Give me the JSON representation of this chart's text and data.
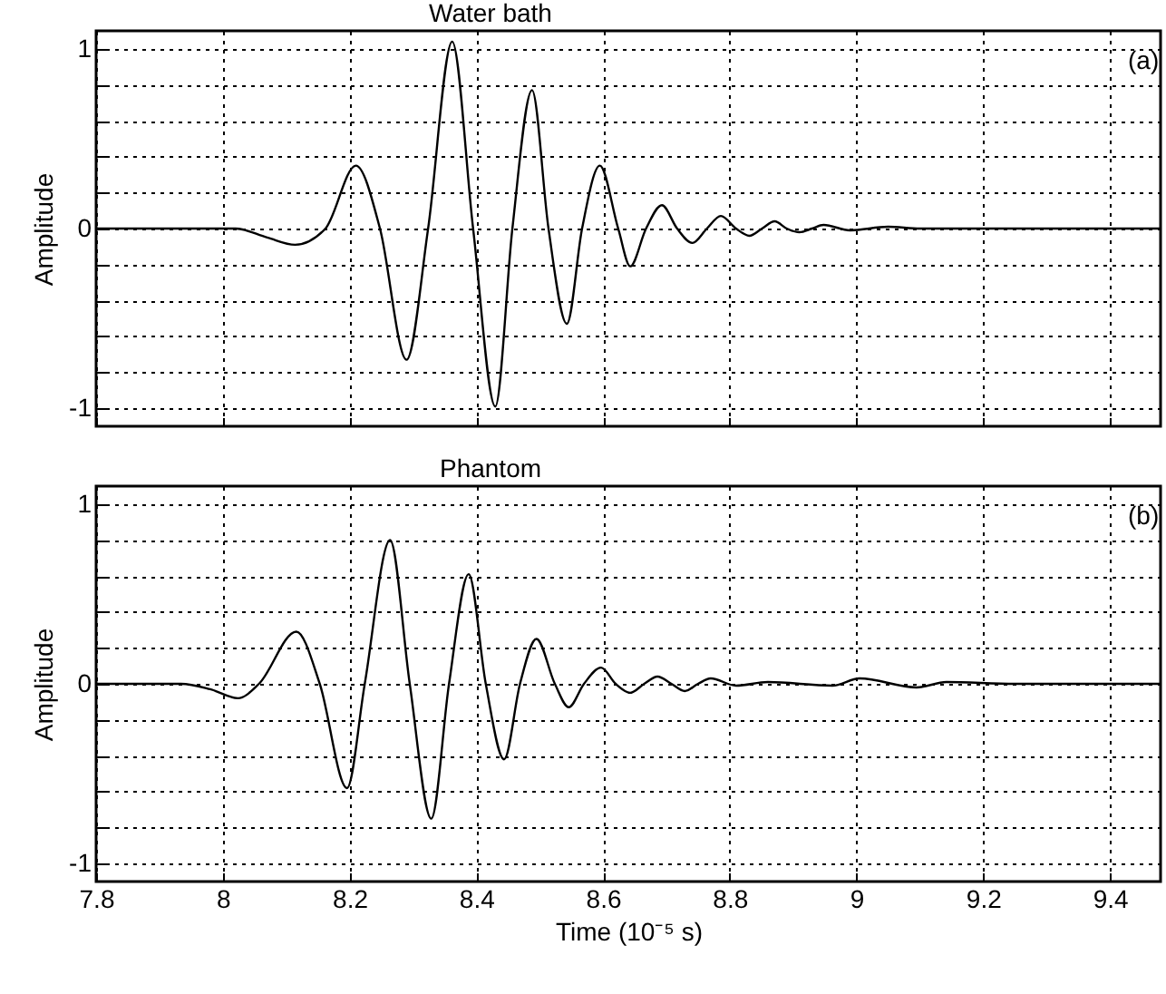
{
  "chart_data": [
    {
      "type": "line",
      "title": "Water bath",
      "ylabel": "Amplitude",
      "annotations": [
        "(a)"
      ],
      "tick_labels": "y",
      "grid": true,
      "line_style": "solid",
      "xlim": [
        7.8,
        9.48
      ],
      "xticks": [
        7.8,
        8,
        8.2,
        8.4,
        8.6,
        8.8,
        9,
        9.2,
        9.4
      ],
      "ylim": [
        -1.1,
        1.1
      ],
      "yticks": [
        -1,
        {
          "value": -0.8,
          "label": null
        },
        {
          "value": -0.6,
          "label": null
        },
        {
          "value": -0.4,
          "label": null
        },
        {
          "value": -0.2,
          "label": null
        },
        0,
        {
          "value": 0.2,
          "label": null
        },
        {
          "value": 0.4,
          "label": null
        },
        {
          "value": 0.6,
          "label": null
        },
        {
          "value": 0.8,
          "label": null
        },
        1
      ],
      "x": [
        7.8,
        8.02,
        8.07,
        8.114,
        8.162,
        8.21,
        8.248,
        8.29,
        8.324,
        8.362,
        8.395,
        8.43,
        8.457,
        8.488,
        8.514,
        8.543,
        8.567,
        8.595,
        8.624,
        8.643,
        8.668,
        8.693,
        8.717,
        8.741,
        8.764,
        8.786,
        8.81,
        8.831,
        8.851,
        8.871,
        8.89,
        8.91,
        8.93,
        8.948,
        8.99,
        9.05,
        9.1,
        9.2,
        9.3,
        9.48
      ],
      "series": [
        {
          "color": "#000000",
          "values": [
            0,
            0,
            -0.05,
            -0.09,
            0,
            0.35,
            0,
            -0.73,
            0,
            1.04,
            0,
            -0.99,
            0,
            0.77,
            0,
            -0.53,
            0,
            0.35,
            0,
            -0.21,
            0,
            0.13,
            0,
            -0.08,
            0,
            0.07,
            0,
            -0.04,
            0,
            0.04,
            0,
            -0.02,
            0,
            0.02,
            -0.01,
            0.01,
            0,
            0,
            0,
            0
          ]
        }
      ]
    },
    {
      "type": "line",
      "title": "Phantom",
      "xlabel": "Time (10⁻⁵ s)",
      "ylabel": "Amplitude",
      "annotations": [
        "(b)"
      ],
      "grid": true,
      "line_style": "solid",
      "xlim": [
        7.8,
        9.48
      ],
      "xticks": [
        7.8,
        8,
        8.2,
        8.4,
        8.6,
        8.8,
        9,
        9.2,
        9.4
      ],
      "ylim": [
        -1.1,
        1.1
      ],
      "yticks": [
        -1,
        {
          "value": -0.8,
          "label": null
        },
        {
          "value": -0.6,
          "label": null
        },
        {
          "value": -0.4,
          "label": null
        },
        {
          "value": -0.2,
          "label": null
        },
        0,
        {
          "value": 0.2,
          "label": null
        },
        {
          "value": 0.4,
          "label": null
        },
        {
          "value": 0.6,
          "label": null
        },
        {
          "value": 0.8,
          "label": null
        },
        1
      ],
      "x": [
        7.8,
        7.934,
        7.98,
        8.024,
        8.057,
        8.116,
        8.153,
        8.196,
        8.224,
        8.264,
        8.295,
        8.329,
        8.357,
        8.388,
        8.415,
        8.444,
        8.469,
        8.495,
        8.524,
        8.546,
        8.57,
        8.597,
        8.62,
        8.643,
        8.665,
        8.686,
        8.708,
        8.729,
        8.75,
        8.77,
        8.81,
        8.86,
        8.962,
        9.005,
        9.095,
        9.142,
        9.25,
        9.48
      ],
      "series": [
        {
          "color": "#000000",
          "values": [
            0,
            0,
            -0.03,
            -0.08,
            0,
            0.29,
            0,
            -0.58,
            0,
            0.8,
            0,
            -0.75,
            0,
            0.61,
            0,
            -0.42,
            0,
            0.25,
            0,
            -0.13,
            0,
            0.09,
            0,
            -0.05,
            0,
            0.04,
            0,
            -0.04,
            0,
            0.03,
            -0.01,
            0.01,
            -0.01,
            0.03,
            -0.02,
            0.01,
            0,
            0
          ]
        }
      ]
    }
  ]
}
